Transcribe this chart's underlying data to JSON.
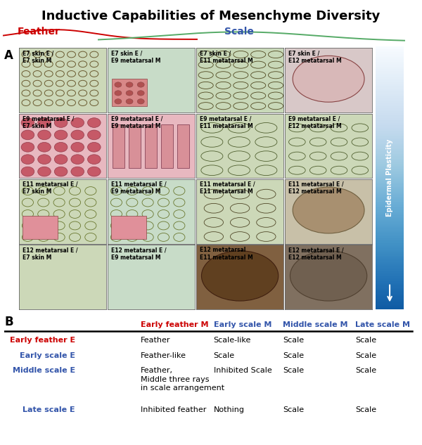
{
  "title": "Inductive Capabilities of Mesenchyme Diversity",
  "title_fontsize": 13,
  "title_fontweight": "bold",
  "feather_label": "Feather",
  "scale_label": "Scale",
  "feather_color": "#cc0000",
  "scale_color": "#3355aa",
  "green_curve_color": "#55aa66",
  "epidermal_plasticity_label": "Epidermal Plasticity",
  "panel_A_label": "A",
  "panel_B_label": "B",
  "grid_labels": [
    [
      "E7 skin E /\nE7 skin M",
      "E7 skin E /\nE9 metatarsal M",
      "E7 skin E /\nE11 metatarsal M",
      "E7 skin E /\nE12 metatarsal M"
    ],
    [
      "E9 metatarsal E /\nE7 skin M",
      "E9 metatarsal E /\nE9 metatarsal M",
      "E9 metatarsal E /\nE11 metatarsal M",
      "E9 metatarsal E /\nE12 metatarsal M"
    ],
    [
      "E11 metatarsal E /\nE7 skin M",
      "E11 metatarsal E /\nE9 metatarsal M",
      "E11 metatarsal E /\nE11 metatarsal M",
      "E11 metatarsal E /\nE12 metatarsal M"
    ],
    [
      "E12 metatarsal E /\nE7 skin M",
      "E12 metatarsal E /\nE9 metatarsal M",
      "E12 metatarsal\nE11 metatarsal M",
      "E12 metatarsal E /\nE12 metatarsal M"
    ]
  ],
  "grid_bg_colors": [
    [
      "#ccd8b8",
      "#c8dcc8",
      "#c8d8b8",
      "#d8c8c8"
    ],
    [
      "#e8c0c8",
      "#e8c0c8",
      "#ccd8b8",
      "#ccd8b8"
    ],
    [
      "#ccd8b8",
      "#c8dcc8",
      "#ccd8b8",
      "#c8c0a8"
    ],
    [
      "#ccd8b8",
      "#c8dcc8",
      "#907860",
      "#908070"
    ]
  ],
  "table_header_cols": [
    "Early feather M",
    "Early scale M",
    "Middle scale M",
    "Late scale M"
  ],
  "table_col_colors": [
    "#cc0000",
    "#3355aa",
    "#3355aa",
    "#3355aa"
  ],
  "table_row_labels": [
    "Early feather E",
    "Early scale E",
    "Middle scale E",
    "Late scale E"
  ],
  "table_row_label_colors": [
    "#cc0000",
    "#3355aa",
    "#3355aa",
    "#3355aa"
  ],
  "table_data": [
    [
      "Feather",
      "Scale-like",
      "Scale",
      "Scale"
    ],
    [
      "Feather-like",
      "Scale",
      "Scale",
      "Scale"
    ],
    [
      "Feather,\nMiddle three rays\nin scale arrangement",
      "Inhibited Scale",
      "Scale",
      "Scale"
    ],
    [
      "Inhibited feather",
      "Nothing",
      "Scale",
      "Scale"
    ]
  ],
  "bg_color": "#ffffff",
  "sidebar_gradient_top": "#4466cc",
  "sidebar_gradient_bottom": "#aabbdd",
  "label_fontsize": 8.5,
  "table_fontsize": 8.0,
  "cell_label_fontsize": 5.5
}
